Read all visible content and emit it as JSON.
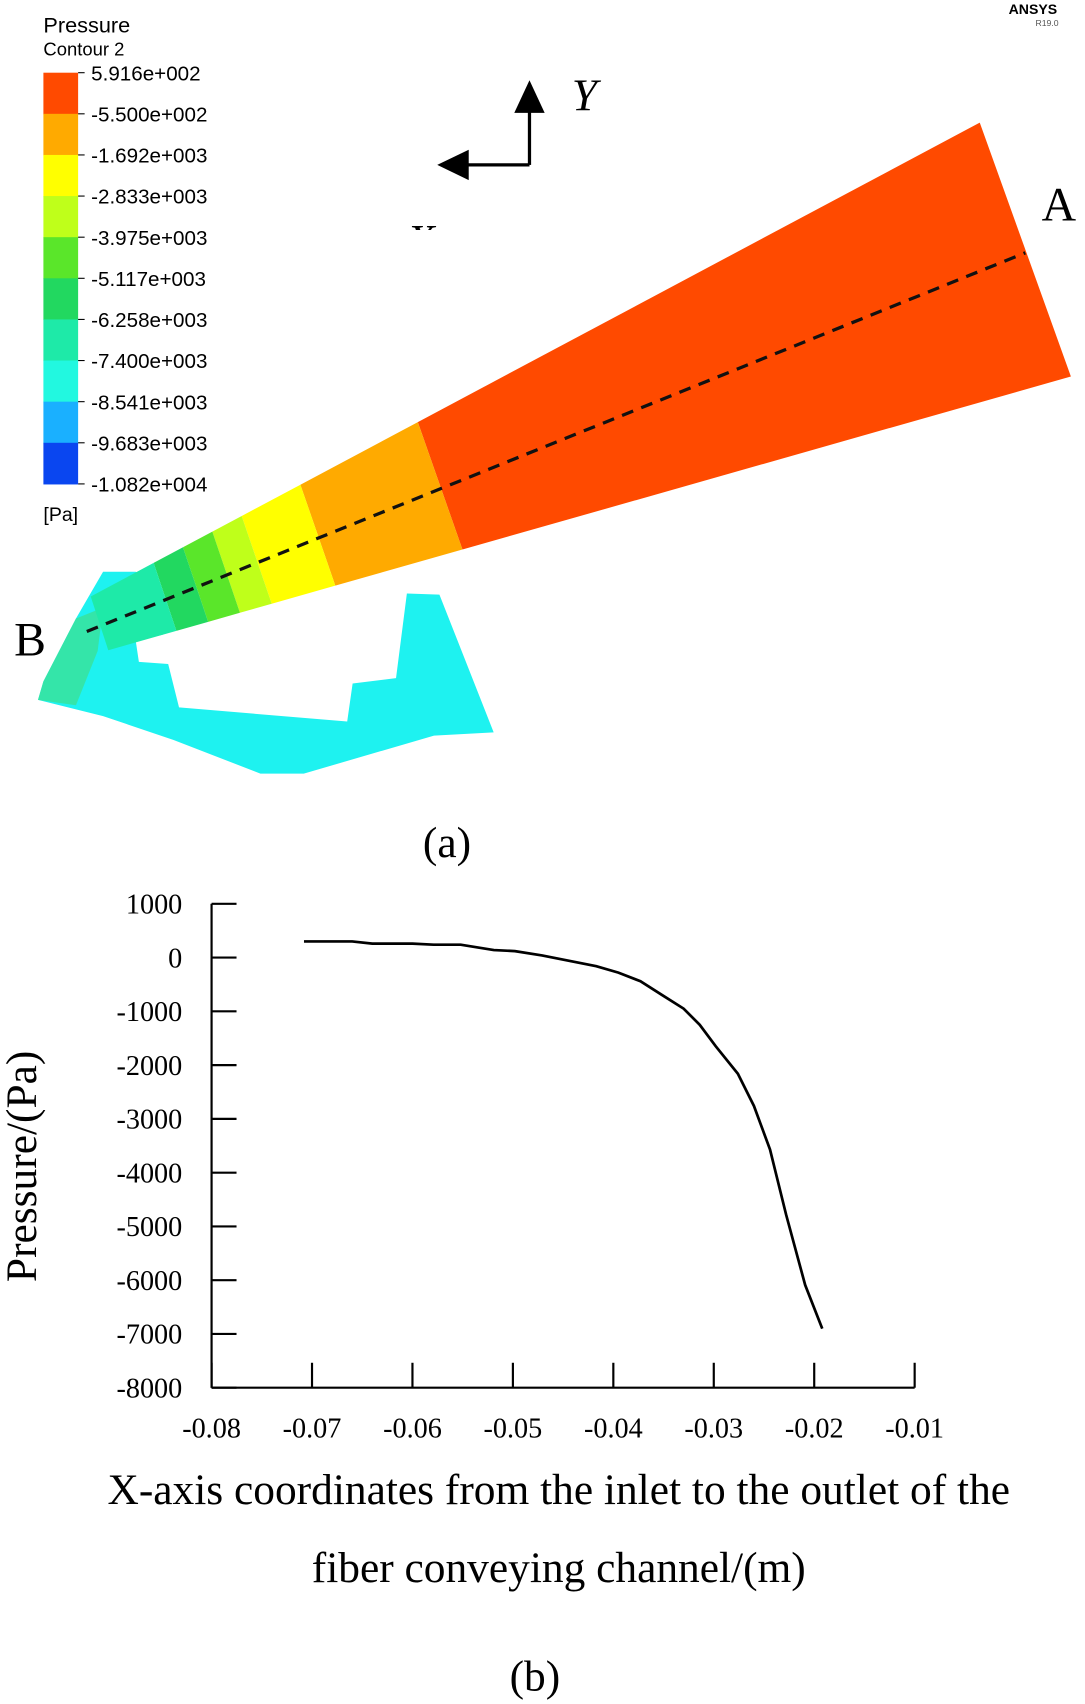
{
  "contour": {
    "title": "Pressure",
    "subtitle": "Contour 2",
    "levels": [
      "5.916e+002",
      "-5.500e+002",
      "-1.692e+003",
      "-2.833e+003",
      "-3.975e+003",
      "-5.117e+003",
      "-6.258e+003",
      "-7.400e+003",
      "-8.541e+003",
      "-9.683e+003",
      "-1.082e+004"
    ],
    "colors": [
      "#ff4a00",
      "#ffaa00",
      "#ffff00",
      "#bfff1a",
      "#5ae62a",
      "#22d860",
      "#1eeaa8",
      "#22f8e0",
      "#1ab0ff",
      "#0a46f0"
    ],
    "unit": "[Pa]",
    "brand": "ANSYS",
    "version": "R19.0",
    "axis_y": "Y",
    "axis_x": "X",
    "point_a": "A",
    "point_b": "B",
    "caption": "(a)"
  },
  "chart_data": {
    "type": "line",
    "ylabel": "Pressure/(Pa)",
    "xlabel": [
      "X-axis coordinates from the inlet to the outlet of the",
      "fiber conveying channel/(m)"
    ],
    "caption": "(b)",
    "x": [
      -0.0708,
      -0.066,
      -0.064,
      -0.06,
      -0.0579,
      -0.0552,
      -0.0519,
      -0.0498,
      -0.0471,
      -0.0444,
      -0.0417,
      -0.0395,
      -0.0373,
      -0.0352,
      -0.033,
      -0.0314,
      -0.0298,
      -0.0276,
      -0.026,
      -0.0244,
      -0.0228,
      -0.0209,
      -0.0192
    ],
    "values": [
      300,
      300,
      260,
      260,
      240,
      240,
      140,
      120,
      40,
      -60,
      -160,
      -280,
      -440,
      -690,
      -950,
      -1250,
      -1650,
      -2160,
      -2760,
      -3570,
      -4780,
      -6090,
      -6900
    ],
    "color": "#000000",
    "xlim": [
      -0.08,
      -0.01
    ],
    "xticks": [
      -0.08,
      -0.07,
      -0.06,
      -0.05,
      -0.04,
      -0.03,
      -0.02,
      -0.01
    ],
    "ylim": [
      -8000,
      1000
    ],
    "yticks": [
      -8000,
      -7000,
      -6000,
      -5000,
      -4000,
      -3000,
      -2000,
      -1000,
      0,
      1000
    ]
  }
}
